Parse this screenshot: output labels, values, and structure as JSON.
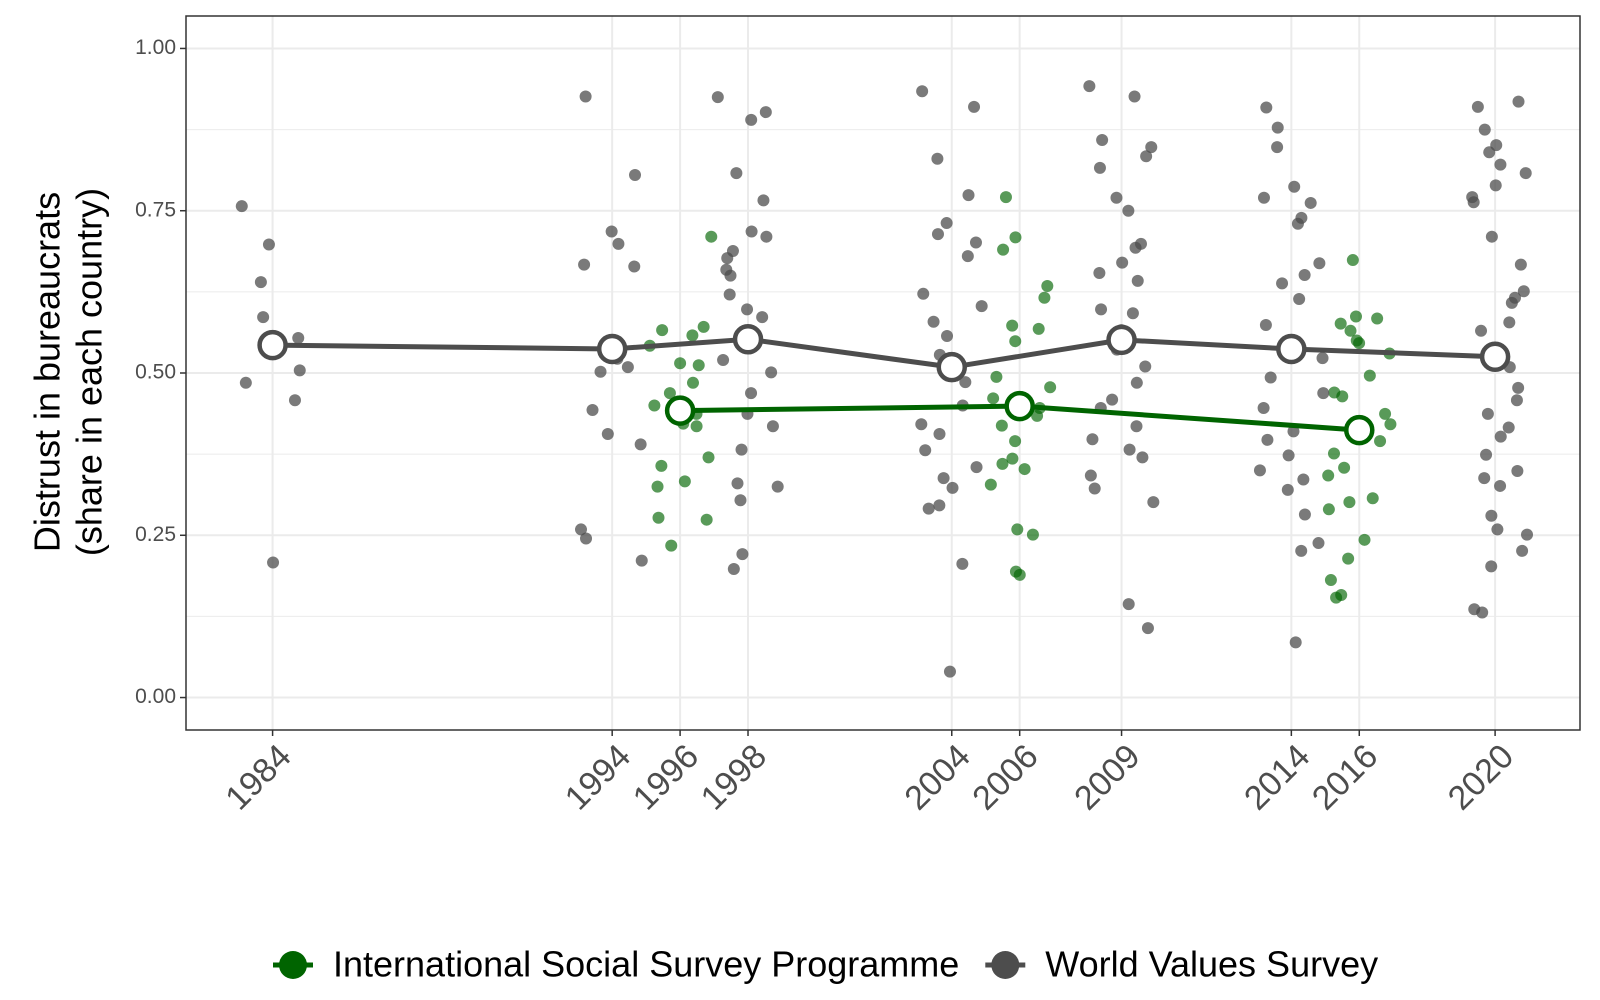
{
  "chart_data": {
    "type": "line",
    "y_label": [
      "Distrust in bureaucrats",
      "(share in each country)"
    ],
    "xlim": [
      1981.45,
      2022.5
    ],
    "xticks": [
      1984,
      1994,
      1996,
      1998,
      2004,
      2006,
      2009,
      2014,
      2016,
      2020
    ],
    "ylim": [
      -0.05,
      1.05
    ],
    "yticks": [
      {
        "value": 0,
        "label": "0.00"
      },
      {
        "value": 0.25,
        "label": "0.25"
      },
      {
        "value": 0.5,
        "label": "0.50"
      },
      {
        "value": 0.75,
        "label": "0.75"
      },
      {
        "value": 1,
        "label": "1.00"
      }
    ],
    "grid": true,
    "legend": "bottom",
    "series": [
      {
        "name": "International Social Survey Programme",
        "color": "#006400",
        "x": [
          1996,
          2006,
          2016
        ],
        "values": [
          0.442,
          0.449,
          0.412
        ],
        "country_values": [
          [
            0.71,
            0.571,
            0.566,
            0.558,
            0.542,
            0.515,
            0.512,
            0.485,
            0.469,
            0.45,
            0.437,
            0.422,
            0.418,
            0.37,
            0.357,
            0.333,
            0.325,
            0.277,
            0.274,
            0.234
          ],
          [
            0.771,
            0.709,
            0.69,
            0.634,
            0.616,
            0.573,
            0.568,
            0.549,
            0.494,
            0.478,
            0.461,
            0.446,
            0.434,
            0.419,
            0.395,
            0.368,
            0.36,
            0.352,
            0.328,
            0.259,
            0.251,
            0.194,
            0.189
          ],
          [
            0.674,
            0.587,
            0.584,
            0.576,
            0.565,
            0.55,
            0.546,
            0.53,
            0.496,
            0.47,
            0.464,
            0.437,
            0.421,
            0.395,
            0.376,
            0.354,
            0.342,
            0.307,
            0.301,
            0.29,
            0.243,
            0.214,
            0.181,
            0.158,
            0.154
          ]
        ]
      },
      {
        "name": "World Values Survey",
        "color": "#4d4d4d",
        "x": [
          1984,
          1994,
          1998,
          2004,
          2009,
          2014,
          2020
        ],
        "values": [
          0.543,
          0.537,
          0.552,
          0.509,
          0.551,
          0.537,
          0.525
        ],
        "country_values": [
          [
            0.586,
            0.757,
            0.698,
            0.64,
            0.554,
            0.504,
            0.485,
            0.458,
            0.208
          ],
          [
            0.926,
            0.805,
            0.718,
            0.699,
            0.664,
            0.667,
            0.509,
            0.502,
            0.443,
            0.406,
            0.39,
            0.259,
            0.245,
            0.211,
            0.522
          ],
          [
            0.925,
            0.902,
            0.89,
            0.808,
            0.766,
            0.718,
            0.688,
            0.677,
            0.659,
            0.71,
            0.65,
            0.621,
            0.598,
            0.586,
            0.565,
            0.538,
            0.52,
            0.501,
            0.469,
            0.437,
            0.418,
            0.382,
            0.33,
            0.325,
            0.304,
            0.221,
            0.198
          ],
          [
            0.934,
            0.91,
            0.83,
            0.774,
            0.731,
            0.714,
            0.701,
            0.68,
            0.622,
            0.603,
            0.579,
            0.557,
            0.528,
            0.515,
            0.486,
            0.45,
            0.421,
            0.406,
            0.381,
            0.355,
            0.338,
            0.323,
            0.296,
            0.291,
            0.206,
            0.04
          ],
          [
            0.942,
            0.926,
            0.859,
            0.848,
            0.834,
            0.816,
            0.77,
            0.75,
            0.699,
            0.693,
            0.67,
            0.654,
            0.642,
            0.598,
            0.592,
            0.566,
            0.536,
            0.51,
            0.485,
            0.459,
            0.446,
            0.418,
            0.398,
            0.382,
            0.37,
            0.342,
            0.322,
            0.301,
            0.144,
            0.107
          ],
          [
            0.909,
            0.878,
            0.848,
            0.787,
            0.77,
            0.762,
            0.739,
            0.73,
            0.669,
            0.651,
            0.638,
            0.614,
            0.574,
            0.546,
            0.523,
            0.493,
            0.469,
            0.446,
            0.41,
            0.397,
            0.373,
            0.35,
            0.336,
            0.32,
            0.282,
            0.238,
            0.226,
            0.085
          ],
          [
            0.918,
            0.91,
            0.875,
            0.851,
            0.84,
            0.821,
            0.808,
            0.789,
            0.771,
            0.763,
            0.71,
            0.667,
            0.626,
            0.616,
            0.608,
            0.578,
            0.565,
            0.522,
            0.509,
            0.477,
            0.458,
            0.437,
            0.416,
            0.402,
            0.374,
            0.349,
            0.338,
            0.326,
            0.28,
            0.259,
            0.251,
            0.226,
            0.202,
            0.136,
            0.131
          ]
        ]
      }
    ]
  }
}
